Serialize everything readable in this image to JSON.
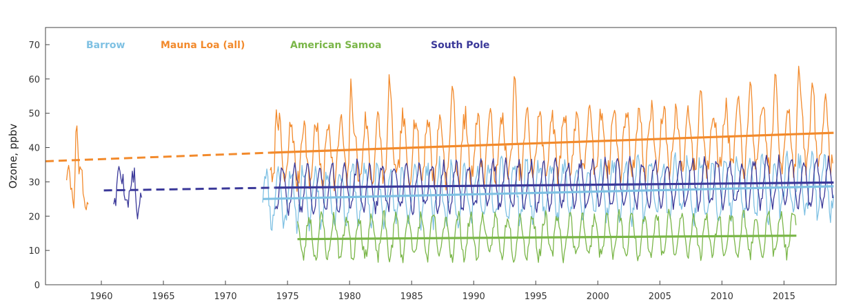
{
  "chart_data": {
    "type": "line",
    "title": "",
    "xlabel": "",
    "ylabel": "Ozone, ppbv",
    "xlim": [
      1955.5,
      2019.2
    ],
    "ylim": [
      0,
      75
    ],
    "xticks": [
      1960,
      1965,
      1970,
      1975,
      1980,
      1985,
      1990,
      1995,
      2000,
      2005,
      2010,
      2015
    ],
    "yticks": [
      0,
      10,
      20,
      30,
      40,
      50,
      60,
      70
    ],
    "grid": false,
    "legend_position": "top-left, inside plot, horizontal",
    "series": [
      {
        "name": "Barrow",
        "color": "#7fc1e3",
        "style": "monthly",
        "segments": [
          {
            "start": 1973.0,
            "end": 2019.0,
            "mean": 25.5,
            "trend_per_year": 0.07,
            "amplitude": 8,
            "phase": 0.25,
            "noise": 3,
            "seed": 11
          }
        ],
        "trend_line": {
          "x": [
            1973.0,
            2019.0
          ],
          "y": [
            25.0,
            28.7
          ]
        }
      },
      {
        "name": "Mauna Loa (all)",
        "color": "#f28a2c",
        "style": "monthly",
        "segments": [
          {
            "start": 1957.2,
            "end": 1959.0,
            "mean": 28.0,
            "trend_per_year": 0,
            "amplitude": 5,
            "phase": 0.3,
            "noise": 3,
            "seed": 3
          },
          {
            "start": 1973.6,
            "end": 2019.0,
            "mean": 38.0,
            "trend_per_year": 0.13,
            "amplitude": 9,
            "phase": 0.3,
            "noise": 3.5,
            "seed": 7
          }
        ],
        "peaks": [
          {
            "x": 1958.0,
            "y": 50.5
          },
          {
            "x": 1974.1,
            "y": 51
          },
          {
            "x": 1980.1,
            "y": 60
          },
          {
            "x": 1983.2,
            "y": 62.5
          },
          {
            "x": 1988.3,
            "y": 60
          },
          {
            "x": 1993.3,
            "y": 62.5
          },
          {
            "x": 2008.3,
            "y": 58
          },
          {
            "x": 2012.3,
            "y": 60
          },
          {
            "x": 2014.3,
            "y": 63
          },
          {
            "x": 2016.2,
            "y": 65
          },
          {
            "x": 2017.3,
            "y": 60
          }
        ],
        "trend_line": {
          "x": [
            1973.6,
            2019.0
          ],
          "y": [
            38.5,
            44.3
          ]
        },
        "extrapolation": {
          "x": [
            1955.5,
            1973.6
          ],
          "y": [
            36.0,
            38.5
          ]
        }
      },
      {
        "name": "American Samoa",
        "color": "#7ab648",
        "style": "monthly",
        "segments": [
          {
            "start": 1975.8,
            "end": 2016.0,
            "mean": 13.8,
            "trend_per_year": 0.02,
            "amplitude": 6,
            "phase": 0.75,
            "noise": 2,
            "seed": 23
          }
        ],
        "trend_line": {
          "x": [
            1975.8,
            2016.0
          ],
          "y": [
            13.3,
            14.3
          ]
        }
      },
      {
        "name": "South Pole",
        "color": "#3a3899",
        "style": "monthly",
        "segments": [
          {
            "start": 1961.0,
            "end": 1963.3,
            "mean": 28.0,
            "trend_per_year": 0,
            "amplitude": 4,
            "phase": 0.6,
            "noise": 2.5,
            "seed": 5
          },
          {
            "start": 1974.0,
            "end": 2019.0,
            "mean": 28.2,
            "trend_per_year": 0.035,
            "amplitude": 6.5,
            "phase": 0.6,
            "noise": 1.8,
            "seed": 17
          }
        ],
        "peaks": [
          {
            "x": 1961.4,
            "y": 35
          },
          {
            "x": 1962.9,
            "y": 18.5
          }
        ],
        "trend_line": {
          "x": [
            1974.0,
            2019.0
          ],
          "y": [
            28.3,
            29.8
          ]
        },
        "extrapolation": {
          "x": [
            1960.2,
            1974.0
          ],
          "y": [
            27.5,
            28.3
          ]
        }
      }
    ]
  }
}
